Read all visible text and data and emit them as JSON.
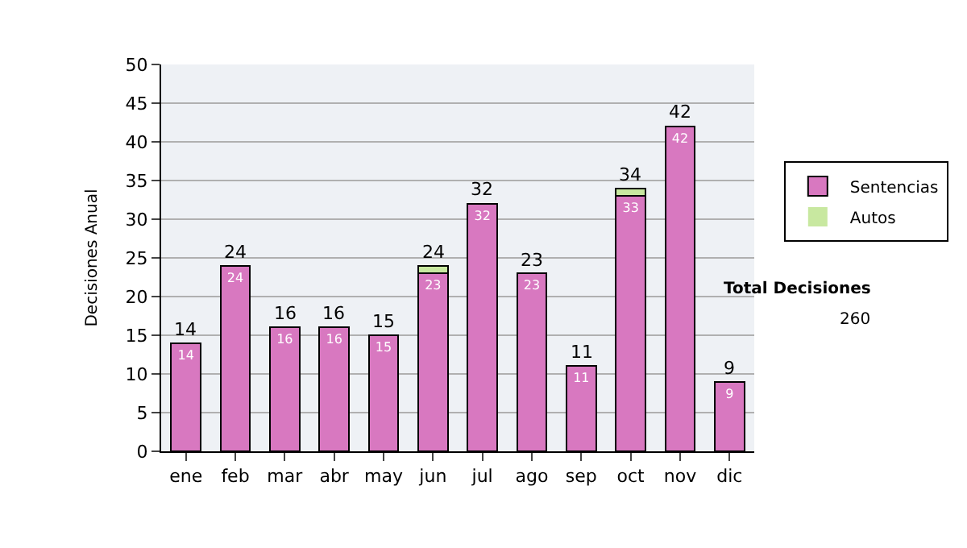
{
  "chart_data": {
    "type": "bar",
    "stacked": true,
    "ylabel": "Decisiones Anual",
    "categories": [
      "ene",
      "feb",
      "mar",
      "abr",
      "may",
      "jun",
      "jul",
      "ago",
      "sep",
      "oct",
      "nov",
      "dic"
    ],
    "series": [
      {
        "name": "Sentencias",
        "color": "#d878c0",
        "values": [
          14,
          24,
          16,
          16,
          15,
          23,
          32,
          23,
          11,
          33,
          42,
          9
        ],
        "value_labels": [
          "14",
          "24",
          "16",
          "16",
          "15",
          "23",
          "32",
          "23",
          "11",
          "33",
          "42",
          "9"
        ]
      },
      {
        "name": "Autos",
        "color": "#c8e8a0",
        "values": [
          0,
          0,
          0,
          0,
          0,
          1,
          0,
          0,
          0,
          1,
          0,
          0
        ]
      }
    ],
    "totals": [
      "14",
      "24",
      "16",
      "16",
      "15",
      "24",
      "32",
      "23",
      "11",
      "34",
      "42",
      "9"
    ],
    "ylim": [
      0,
      50
    ],
    "yticks": [
      0,
      5,
      10,
      15,
      20,
      25,
      30,
      35,
      40,
      45,
      50
    ],
    "grid": "y",
    "legend": "right",
    "annotations": [
      "Total Decisiones",
      "260"
    ]
  }
}
